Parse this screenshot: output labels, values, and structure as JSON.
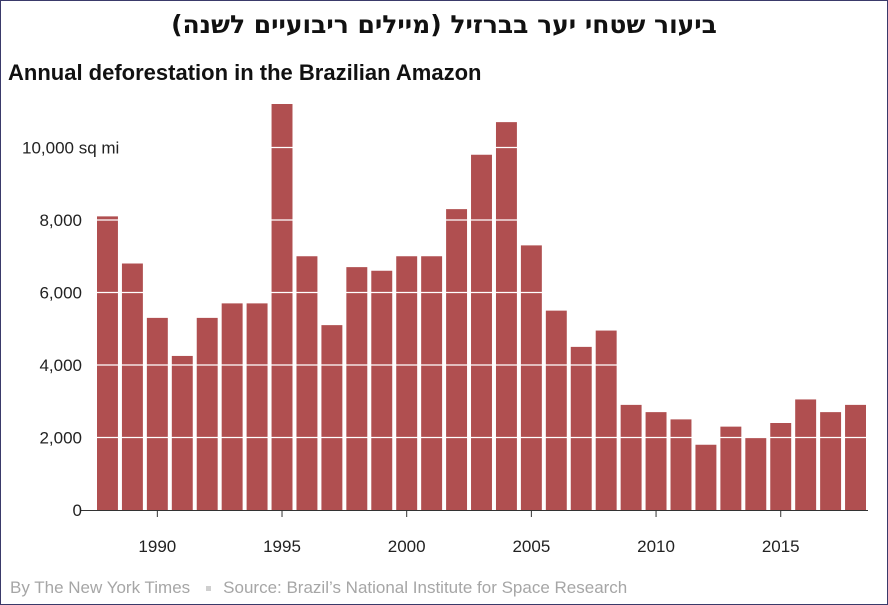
{
  "header": {
    "hebrew_title": "ביעור שטחי יער בברזיל (מיילים ריבועיים לשנה)"
  },
  "footer": {
    "byline": "By The New York Times",
    "source": "Source: Brazil’s National Institute for Space Research"
  },
  "chart_data": {
    "type": "bar",
    "title": "Annual deforestation in the Brazilian Amazon",
    "xlabel": "",
    "ylabel": "",
    "y_unit_label": "10,000 sq mi",
    "years": [
      1988,
      1989,
      1990,
      1991,
      1992,
      1993,
      1994,
      1995,
      1996,
      1997,
      1998,
      1999,
      2000,
      2001,
      2002,
      2003,
      2004,
      2005,
      2006,
      2007,
      2008,
      2009,
      2010,
      2011,
      2012,
      2013,
      2014,
      2015,
      2016,
      2017,
      2018
    ],
    "values": [
      8100,
      6800,
      5300,
      4250,
      5300,
      5700,
      5700,
      11200,
      7000,
      5100,
      6700,
      6600,
      7000,
      7000,
      8300,
      9800,
      10700,
      7300,
      5500,
      4500,
      4950,
      2900,
      2700,
      2500,
      1800,
      2300,
      2000,
      2400,
      3050,
      2700,
      2900
    ],
    "x_ticks": [
      "1990",
      "1995",
      "2000",
      "2005",
      "2010",
      "2015"
    ],
    "x_tick_years": [
      1990,
      1995,
      2000,
      2005,
      2010,
      2015
    ],
    "y_ticks": [
      "0",
      "2,000",
      "4,000",
      "6,000",
      "8,000"
    ],
    "y_tick_values": [
      0,
      2000,
      4000,
      6000,
      8000
    ],
    "y_top_value": 10000,
    "ylim": [
      0,
      11200
    ],
    "grid": true,
    "bar_color": "#b04f50"
  }
}
